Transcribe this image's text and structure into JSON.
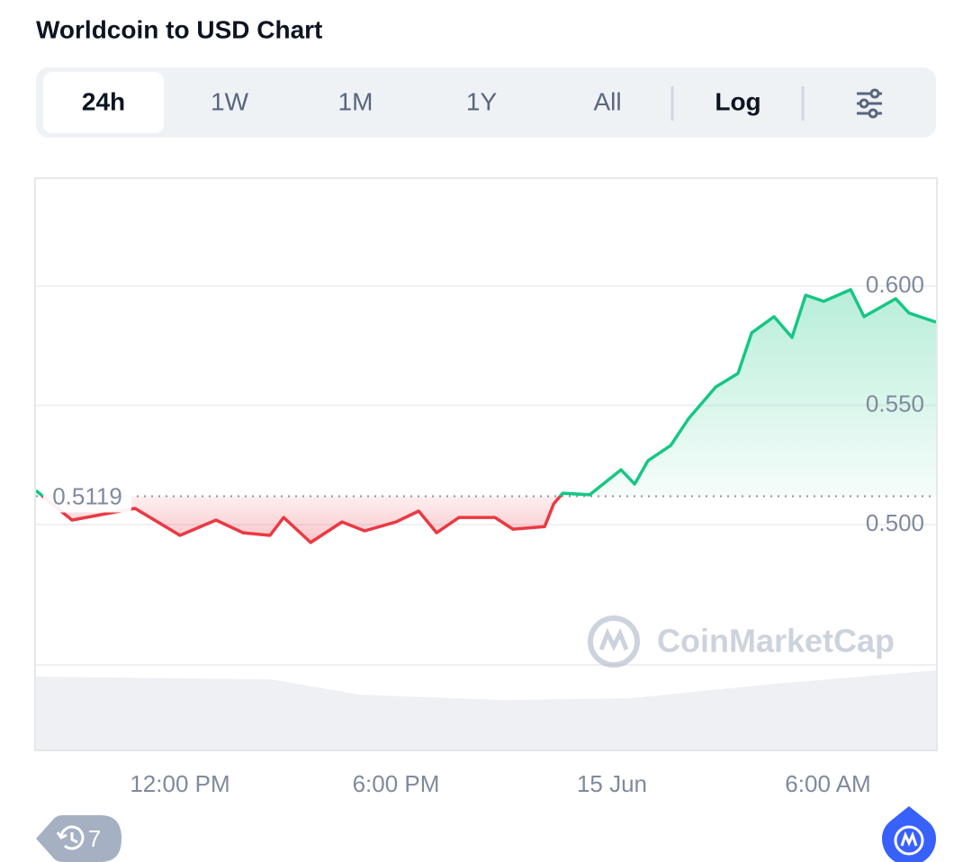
{
  "header": {
    "title": "Worldcoin to USD Chart"
  },
  "toolbar": {
    "tabs": [
      "24h",
      "1W",
      "1M",
      "1Y",
      "All"
    ],
    "active_tab": 0,
    "log_button": "Log"
  },
  "chart_data": {
    "type": "line",
    "x": [
      8.0,
      9.0,
      10.75,
      12.0,
      13.0,
      13.75,
      14.5,
      14.88,
      15.63,
      16.5,
      17.13,
      18.0,
      18.63,
      19.13,
      19.75,
      20.75,
      21.25,
      22.13,
      22.38,
      22.63,
      23.38,
      24.25,
      24.63,
      25.0,
      25.63,
      26.13,
      26.88,
      27.5,
      27.88,
      28.5,
      29.0,
      29.38,
      29.88,
      30.63,
      31.0,
      31.88,
      32.25,
      33.0
    ],
    "values": [
      0.5143,
      0.5019,
      0.5068,
      0.4955,
      0.5019,
      0.4966,
      0.4955,
      0.503,
      0.4925,
      0.5011,
      0.4974,
      0.5011,
      0.5057,
      0.4966,
      0.503,
      0.503,
      0.4981,
      0.4992,
      0.5087,
      0.5132,
      0.5125,
      0.523,
      0.517,
      0.5268,
      0.5332,
      0.5445,
      0.5577,
      0.5634,
      0.5804,
      0.5872,
      0.5785,
      0.5962,
      0.5936,
      0.5985,
      0.5872,
      0.5947,
      0.5887,
      0.5849
    ],
    "reference": 0.5119,
    "up_color": "#16c784",
    "down_color": "#ea3943",
    "xlim": [
      8,
      33
    ],
    "xticks": [
      {
        "value": 12,
        "label": "12:00 PM"
      },
      {
        "value": 18,
        "label": "6:00 PM"
      },
      {
        "value": 24,
        "label": "15 Jun"
      },
      {
        "value": 30,
        "label": "6:00 AM"
      }
    ],
    "ylim": [
      0.4408,
      0.6445
    ],
    "yticks": [
      {
        "value": 0.5,
        "label": "0.500"
      },
      {
        "value": 0.55,
        "label": "0.550"
      },
      {
        "value": 0.6,
        "label": "0.600"
      }
    ],
    "log_scale": false,
    "grid": true,
    "watermark": "CoinMarketCap"
  },
  "footer": {
    "history_count": "7"
  }
}
